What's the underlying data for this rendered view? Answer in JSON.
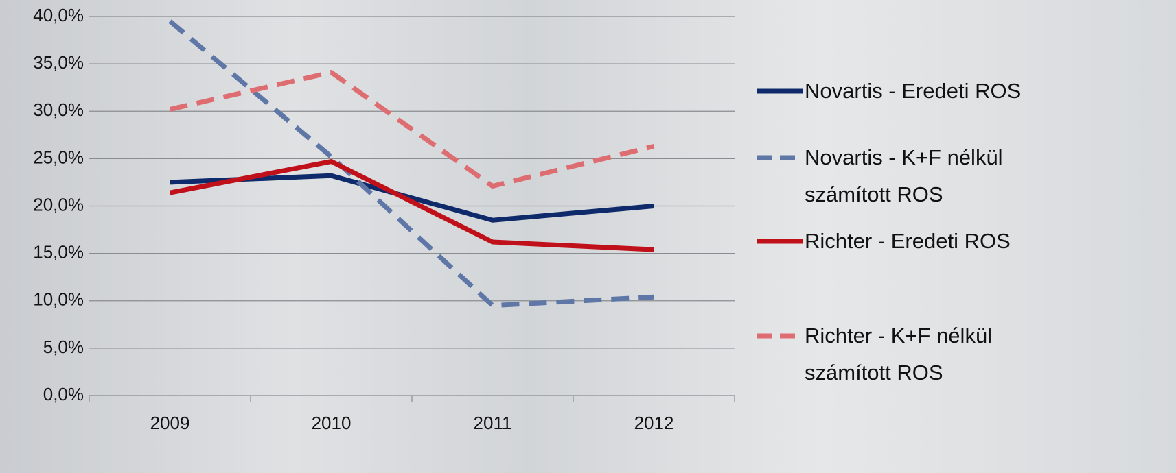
{
  "chart_data": {
    "type": "line",
    "categories": [
      "2009",
      "2010",
      "2011",
      "2012"
    ],
    "ylim": [
      0,
      40
    ],
    "yticks": [
      {
        "value": 0,
        "label": "0,0%"
      },
      {
        "value": 5,
        "label": "5,0%"
      },
      {
        "value": 10,
        "label": "10,0%"
      },
      {
        "value": 15,
        "label": "15,0%"
      },
      {
        "value": 20,
        "label": "20,0%"
      },
      {
        "value": 25,
        "label": "25,0%"
      },
      {
        "value": 30,
        "label": "30,0%"
      },
      {
        "value": 35,
        "label": "35,0%"
      },
      {
        "value": 40,
        "label": "40,0%"
      }
    ],
    "grid": true,
    "legend": "right",
    "series": [
      {
        "name": "Novartis - Eredeti ROS",
        "color": "#0f2a6b",
        "dash": false,
        "values": [
          22.5,
          23.2,
          18.5,
          20.0
        ]
      },
      {
        "name": "Novartis - K+F nélkül számított ROS",
        "color": "#5f77a6",
        "dash": true,
        "values": [
          39.5,
          25.2,
          9.5,
          10.4
        ]
      },
      {
        "name": "Richter - Eredeti ROS",
        "color": "#c0111a",
        "dash": false,
        "values": [
          21.4,
          24.7,
          16.2,
          15.4
        ]
      },
      {
        "name": "Richter - K+F nélkül számított ROS",
        "color": "#de6d72",
        "dash": true,
        "values": [
          30.2,
          34.1,
          22.1,
          26.3
        ]
      }
    ]
  }
}
